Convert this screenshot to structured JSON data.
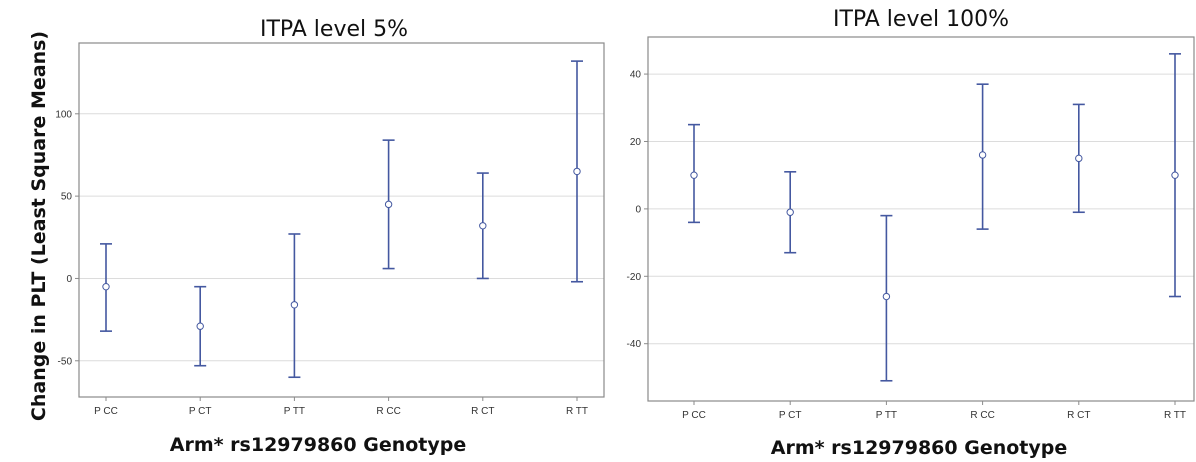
{
  "colors": {
    "series": "#4458a0",
    "grid": "#dcdcdc",
    "frame": "#8a8a8a"
  },
  "shared": {
    "ylabel": "Change in PLT (Least Square Means)"
  },
  "chart_data": [
    {
      "type": "scatter",
      "subtype": "error-bar",
      "title": "ITPA level 5%",
      "xlabel": "Arm* rs12979860 Genotype",
      "ylabel": "Change in PLT (Least Square Means)",
      "categories": [
        "P CC",
        "P CT",
        "P TT",
        "R CC",
        "R CT",
        "R TT"
      ],
      "mean": [
        -5,
        -29,
        -16,
        45,
        32,
        65
      ],
      "lower": [
        -32,
        -53,
        -60,
        6,
        0,
        -2
      ],
      "upper": [
        21,
        -5,
        27,
        84,
        64,
        132
      ],
      "yticks": [
        -50,
        0,
        50,
        100
      ],
      "ytick_labels": [
        "-50",
        "0",
        "50",
        "100"
      ],
      "ylim": [
        -72,
        143
      ],
      "grid": true
    },
    {
      "type": "scatter",
      "subtype": "error-bar",
      "title": "ITPA level 100%",
      "xlabel": "Arm* rs12979860 Genotype",
      "categories": [
        "P CC",
        "P CT",
        "P TT",
        "R CC",
        "R CT",
        "R TT"
      ],
      "mean": [
        10,
        -1,
        -26,
        16,
        15,
        10
      ],
      "lower": [
        -4,
        -13,
        -51,
        -6,
        -1,
        -26
      ],
      "upper": [
        25,
        11,
        -2,
        37,
        31,
        46
      ],
      "yticks": [
        -40,
        -20,
        0,
        20,
        40
      ],
      "ytick_labels": [
        "-40",
        "-20",
        "0",
        "20",
        "40"
      ],
      "ylim": [
        -57,
        51
      ],
      "grid": true
    }
  ]
}
